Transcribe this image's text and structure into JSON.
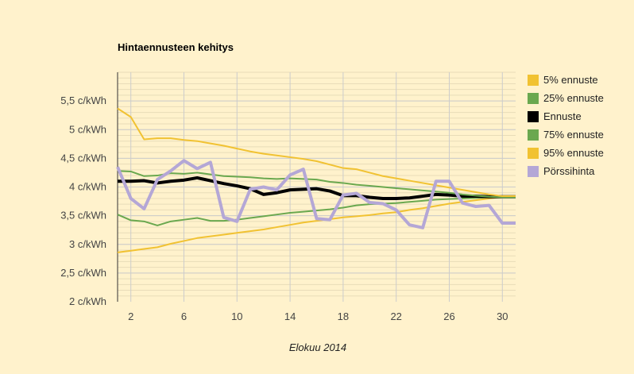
{
  "chart_data": {
    "type": "line",
    "title": "Hintaennusteen kehitys",
    "xlabel": "Elokuu 2014",
    "ylabel": "",
    "xlim": [
      1,
      31
    ],
    "ylim": [
      2,
      6
    ],
    "x_ticks": [
      2,
      6,
      10,
      14,
      18,
      22,
      26,
      30
    ],
    "y_ticks": [
      {
        "v": 2,
        "label": "2 c/kWh"
      },
      {
        "v": 2.5,
        "label": "2,5 c/kWh"
      },
      {
        "v": 3,
        "label": "3 c/kWh"
      },
      {
        "v": 3.5,
        "label": "3,5 c/kWh"
      },
      {
        "v": 4,
        "label": "4 c/kWh"
      },
      {
        "v": 4.5,
        "label": "4,5 c/kWh"
      },
      {
        "v": 5,
        "label": "5 c/kWh"
      },
      {
        "v": 5.5,
        "label": "5,5 c/kWh"
      }
    ],
    "legend_position": "right",
    "x": [
      1,
      2,
      3,
      4,
      5,
      6,
      7,
      8,
      9,
      10,
      11,
      12,
      13,
      14,
      15,
      16,
      17,
      18,
      19,
      20,
      21,
      22,
      23,
      24,
      25,
      26,
      27,
      28,
      29,
      30,
      31
    ],
    "series": [
      {
        "name": "5% ennuste",
        "color": "#f1c232",
        "width": 2,
        "values": [
          2.86,
          2.89,
          2.92,
          2.95,
          3.01,
          3.06,
          3.11,
          3.14,
          3.17,
          3.2,
          3.23,
          3.26,
          3.3,
          3.34,
          3.38,
          3.41,
          3.44,
          3.47,
          3.49,
          3.51,
          3.54,
          3.56,
          3.6,
          3.63,
          3.67,
          3.71,
          3.74,
          3.77,
          3.8,
          3.83,
          3.84
        ]
      },
      {
        "name": "25% ennuste",
        "color": "#6aa84f",
        "width": 2,
        "values": [
          3.52,
          3.42,
          3.4,
          3.33,
          3.4,
          3.43,
          3.46,
          3.41,
          3.41,
          3.43,
          3.46,
          3.49,
          3.52,
          3.55,
          3.57,
          3.59,
          3.61,
          3.64,
          3.68,
          3.7,
          3.71,
          3.72,
          3.74,
          3.76,
          3.78,
          3.79,
          3.8,
          3.81,
          3.82,
          3.82,
          3.82
        ]
      },
      {
        "name": "Ennuste",
        "color": "#000000",
        "width": 4,
        "values": [
          4.1,
          4.1,
          4.11,
          4.07,
          4.1,
          4.12,
          4.16,
          4.11,
          4.06,
          4.02,
          3.97,
          3.87,
          3.9,
          3.95,
          3.96,
          3.97,
          3.93,
          3.85,
          3.85,
          3.82,
          3.8,
          3.8,
          3.81,
          3.84,
          3.87,
          3.86,
          3.84,
          3.84,
          3.83,
          3.83,
          3.83
        ]
      },
      {
        "name": "75% ennuste",
        "color": "#6aa84f",
        "width": 2,
        "values": [
          4.28,
          4.27,
          4.19,
          4.2,
          4.24,
          4.23,
          4.25,
          4.22,
          4.19,
          4.18,
          4.17,
          4.15,
          4.14,
          4.15,
          4.14,
          4.13,
          4.09,
          4.07,
          4.04,
          4.02,
          4.0,
          3.98,
          3.96,
          3.94,
          3.92,
          3.9,
          3.87,
          3.85,
          3.83,
          3.82,
          3.82
        ]
      },
      {
        "name": "95% ennuste",
        "color": "#f1c232",
        "width": 2,
        "values": [
          5.37,
          5.22,
          4.83,
          4.85,
          4.85,
          4.82,
          4.8,
          4.76,
          4.72,
          4.67,
          4.62,
          4.58,
          4.55,
          4.52,
          4.49,
          4.45,
          4.39,
          4.33,
          4.31,
          4.25,
          4.19,
          4.15,
          4.11,
          4.07,
          4.03,
          3.99,
          3.95,
          3.91,
          3.87,
          3.84,
          3.84
        ]
      },
      {
        "name": "Pörssihinta",
        "color": "#b4a7d6",
        "width": 4,
        "values": [
          4.35,
          3.8,
          3.62,
          4.13,
          4.28,
          4.46,
          4.32,
          4.43,
          3.47,
          3.4,
          3.96,
          4.0,
          3.95,
          4.21,
          4.31,
          3.45,
          3.43,
          3.86,
          3.89,
          3.73,
          3.71,
          3.6,
          3.34,
          3.29,
          4.1,
          4.1,
          3.72,
          3.66,
          3.68,
          3.37,
          3.37
        ]
      }
    ]
  }
}
